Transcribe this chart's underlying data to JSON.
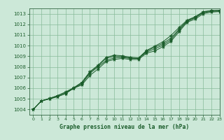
{
  "title": "Graphe pression niveau de la mer (hPa)",
  "background_color": "#cce8d8",
  "grid_color": "#88bb99",
  "line_color": "#1a5c2a",
  "spine_color": "#336644",
  "xlim": [
    -0.5,
    23
  ],
  "ylim": [
    1003.5,
    1013.5
  ],
  "yticks": [
    1004,
    1005,
    1006,
    1007,
    1008,
    1009,
    1010,
    1011,
    1012,
    1013
  ],
  "xticks": [
    0,
    1,
    2,
    3,
    4,
    5,
    6,
    7,
    8,
    9,
    10,
    11,
    12,
    13,
    14,
    15,
    16,
    17,
    18,
    19,
    20,
    21,
    22,
    23
  ],
  "series": [
    [
      1004.0,
      1004.8,
      1005.0,
      1005.2,
      1005.5,
      1006.0,
      1006.3,
      1007.2,
      1007.8,
      1008.5,
      1008.7,
      1008.8,
      1008.7,
      1008.7,
      1009.3,
      1009.5,
      1009.9,
      1010.4,
      1011.3,
      1012.2,
      1012.5,
      1013.0,
      1013.15,
      1013.2
    ],
    [
      1004.0,
      1004.8,
      1005.0,
      1005.2,
      1005.5,
      1006.0,
      1006.4,
      1007.4,
      1008.0,
      1008.6,
      1008.85,
      1008.9,
      1008.8,
      1008.8,
      1009.4,
      1009.7,
      1010.05,
      1010.55,
      1011.45,
      1012.28,
      1012.62,
      1013.1,
      1013.22,
      1013.25
    ],
    [
      1004.0,
      1004.8,
      1005.0,
      1005.3,
      1005.6,
      1006.0,
      1006.5,
      1007.5,
      1008.1,
      1008.8,
      1009.0,
      1008.95,
      1008.85,
      1008.8,
      1009.5,
      1009.85,
      1010.2,
      1010.7,
      1011.55,
      1012.32,
      1012.68,
      1013.15,
      1013.28,
      1013.3
    ],
    [
      1004.0,
      1004.8,
      1005.05,
      1005.3,
      1005.65,
      1006.05,
      1006.55,
      1007.55,
      1008.15,
      1008.9,
      1009.1,
      1009.05,
      1008.9,
      1008.85,
      1009.55,
      1009.95,
      1010.35,
      1010.95,
      1011.7,
      1012.4,
      1012.72,
      1013.2,
      1013.3,
      1013.32
    ]
  ]
}
